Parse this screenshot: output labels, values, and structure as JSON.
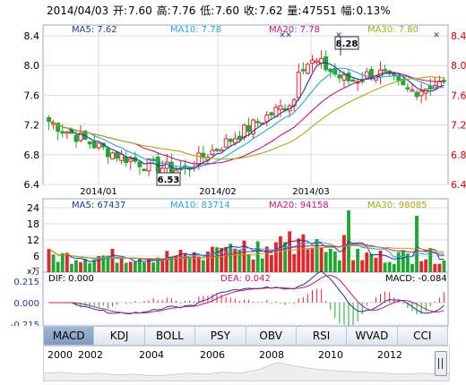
{
  "header": {
    "date": "2014/04/03",
    "open_label": "开:",
    "open": "7.60",
    "high_label": "高:",
    "high": "7.76",
    "low_label": "低:",
    "low": "7.60",
    "close_label": "收:",
    "close": "7.62",
    "vol_label": "量:",
    "vol": "47551",
    "chg_label": "幅:",
    "chg": "0.13%"
  },
  "price_panel": {
    "ma_labels": [
      {
        "text": "MA5: 7.62",
        "color": "#1f3a93"
      },
      {
        "text": "MA10: 7.78",
        "color": "#2aa7d6"
      },
      {
        "text": "MA20: 7.78",
        "color": "#c2187a"
      },
      {
        "text": "MA30: 7.80",
        "color": "#a7a917"
      }
    ],
    "y_ticks": [
      "8.4",
      "8.0",
      "7.6",
      "7.2",
      "6.8",
      "6.4"
    ],
    "x_ticks": [
      "2014/01",
      "2014/02",
      "2014/03"
    ],
    "high_note": "8.28",
    "low_note": "6.53"
  },
  "volume_panel": {
    "ma_labels": [
      {
        "text": "MA5: 67437",
        "color": "#1f3a93"
      },
      {
        "text": "MA10: 83714",
        "color": "#2aa7d6"
      },
      {
        "text": "MA20: 94158",
        "color": "#c2187a"
      },
      {
        "text": "MA30: 98085",
        "color": "#a7a917"
      }
    ],
    "y_ticks": [
      "24",
      "18",
      "12",
      "6"
    ],
    "unit": "x万"
  },
  "macd_panel": {
    "dif_label": "DIF: 0.000",
    "dea_label": "DEA: 0.042",
    "macd_label": "MACD: -0.084",
    "y_ticks": [
      "0.215",
      "0.000",
      "-0.215"
    ]
  },
  "tabs": [
    "MACD",
    "KDJ",
    "BOLL",
    "PSY",
    "OBV",
    "RSI",
    "WVAD",
    "CCI"
  ],
  "active_tab": "MACD",
  "timeline": [
    "2000",
    "2002",
    "2004",
    "2006",
    "2008",
    "2010",
    "2012"
  ],
  "colors": {
    "up": "#e3262c",
    "down": "#1fa633",
    "grid": "#d7dde5",
    "axis_red": "#cc0000"
  }
}
